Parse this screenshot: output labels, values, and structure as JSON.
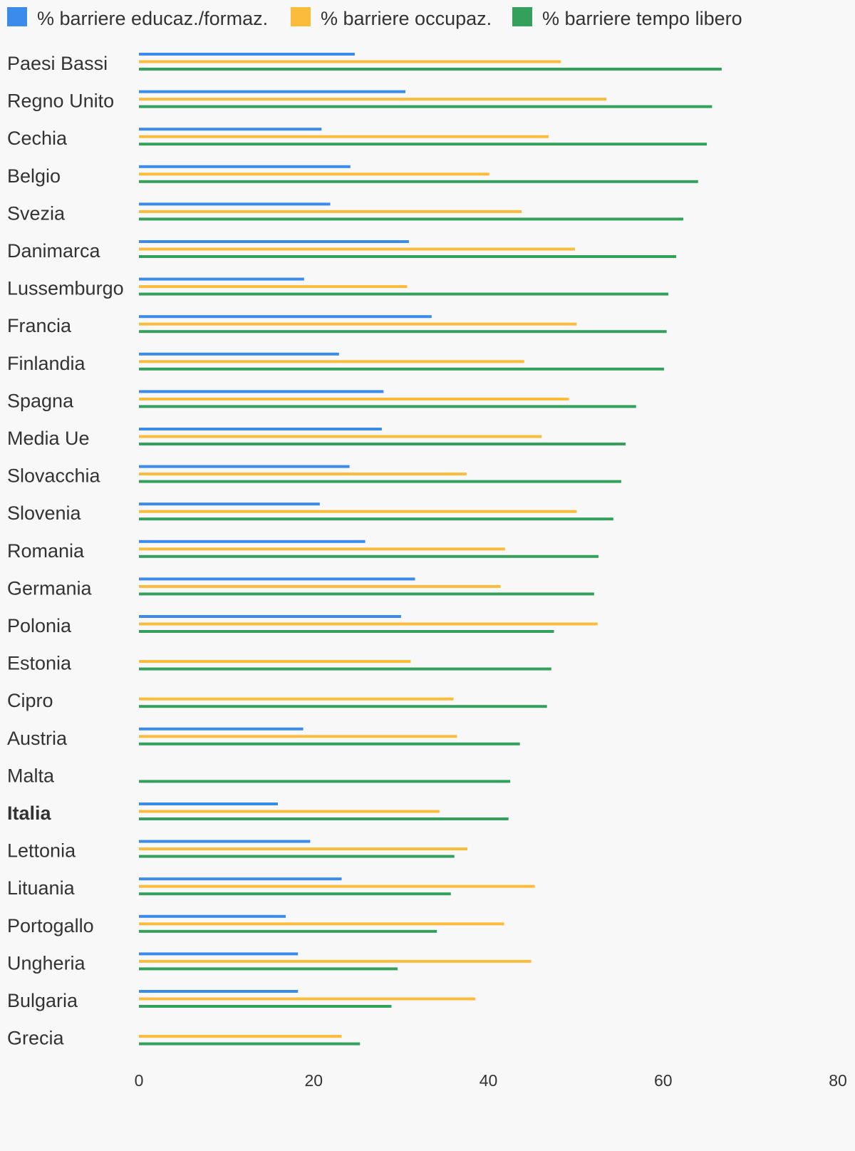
{
  "chart_data": {
    "type": "bar",
    "orientation": "horizontal",
    "legend_position": "top-left",
    "grid": false,
    "xlim": [
      0,
      80
    ],
    "x_ticks": [
      0,
      20,
      40,
      60,
      80
    ],
    "categories": [
      "Paesi Bassi",
      "Regno Unito",
      "Cechia",
      "Belgio",
      "Svezia",
      "Danimarca",
      "Lussemburgo",
      "Francia",
      "Finlandia",
      "Spagna",
      "Media Ue",
      "Slovacchia",
      "Slovenia",
      "Romania",
      "Germania",
      "Polonia",
      "Estonia",
      "Cipro",
      "Austria",
      "Malta",
      "Italia",
      "Lettonia",
      "Lituania",
      "Portogallo",
      "Ungheria",
      "Bulgaria",
      "Grecia"
    ],
    "highlight_category": "Italia",
    "series": [
      {
        "name": "% barriere educaz./formaz.",
        "color": "#3b8beb",
        "values": [
          24.7,
          30.5,
          20.9,
          24.2,
          21.9,
          30.9,
          18.9,
          33.5,
          22.9,
          28.0,
          27.8,
          24.1,
          20.7,
          25.9,
          31.6,
          30.0,
          null,
          null,
          18.8,
          null,
          15.9,
          19.6,
          23.2,
          16.8,
          18.2,
          18.2,
          null
        ]
      },
      {
        "name": "% barriere occupaz.",
        "color": "#fbbb3b",
        "values": [
          48.3,
          53.5,
          46.9,
          40.1,
          43.8,
          49.9,
          30.7,
          50.1,
          44.1,
          49.2,
          46.1,
          37.5,
          50.1,
          41.9,
          41.4,
          52.5,
          31.1,
          36.0,
          36.4,
          null,
          34.4,
          37.6,
          45.3,
          41.8,
          44.9,
          38.5,
          23.2
        ]
      },
      {
        "name": "% barriere tempo libero",
        "color": "#33a15c",
        "values": [
          66.7,
          65.6,
          65.0,
          64.0,
          62.3,
          61.5,
          60.6,
          60.4,
          60.1,
          56.9,
          55.7,
          55.2,
          54.3,
          52.6,
          52.1,
          47.5,
          47.2,
          46.7,
          43.6,
          42.5,
          42.3,
          36.1,
          35.7,
          34.1,
          29.6,
          28.9,
          25.3
        ]
      }
    ]
  }
}
